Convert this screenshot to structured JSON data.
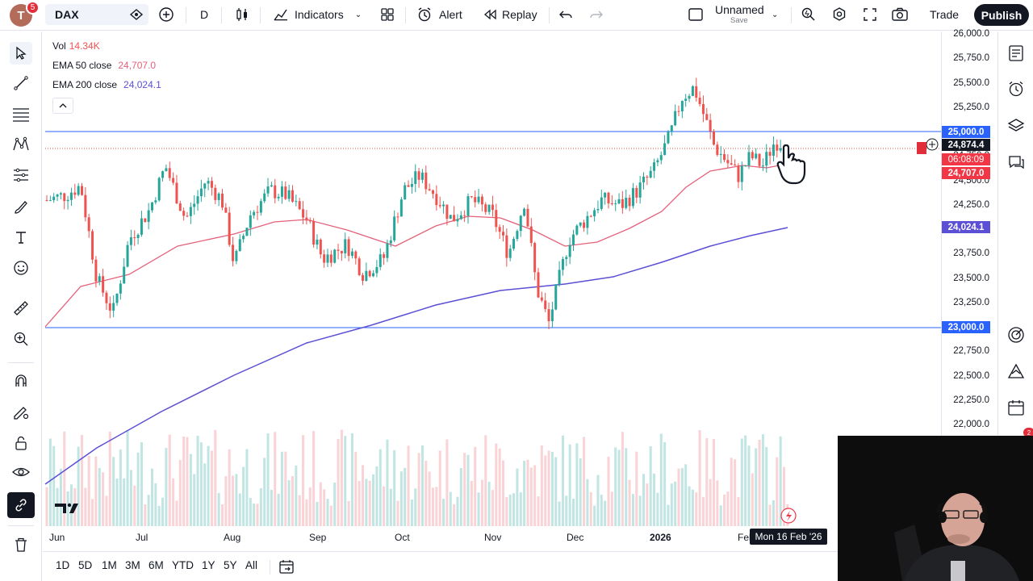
{
  "topbar": {
    "avatar_letter": "T",
    "notification_count": "5",
    "symbol": "DAX",
    "interval": "D",
    "indicators_label": "Indicators",
    "alert_label": "Alert",
    "replay_label": "Replay",
    "layout_name": "Unnamed",
    "layout_status": "Save",
    "trade_label": "Trade",
    "publish_label": "Publish"
  },
  "legend": {
    "vol_label": "Vol",
    "vol_value": "14.34K",
    "ema50_label": "EMA 50 close",
    "ema50_value": "24,707.0",
    "ema200_label": "EMA 200 close",
    "ema200_value": "24,024.1"
  },
  "price_axis": {
    "ticks": [
      "26,000.0",
      "25,750.0",
      "25,500.0",
      "25,250.0",
      "25,000.0",
      "24,750.0",
      "24,500.0",
      "24,250.0",
      "24,000.0",
      "23,750.0",
      "23,500.0",
      "23,250.0",
      "23,000.0",
      "22,750.0",
      "22,500.0",
      "22,250.0",
      "22,000.0"
    ],
    "hline_upper": "25,000.0",
    "last_price": "24,874.4",
    "countdown": "06:08:09",
    "ema50_tag": "24,707.0",
    "ema200_tag": "24,024.1",
    "hline_lower": "23,000.0"
  },
  "time_axis": {
    "ticks": [
      "Jun",
      "Jul",
      "Aug",
      "Sep",
      "Oct",
      "Nov",
      "Dec",
      "2026",
      "Feb"
    ],
    "crosshair_date": "Mon 16 Feb '26"
  },
  "ranges": [
    "1D",
    "5D",
    "1M",
    "3M",
    "6M",
    "YTD",
    "1Y",
    "5Y",
    "All"
  ],
  "colors": {
    "up": "#26a69a",
    "down": "#ef5350",
    "ema50": "#e5607a",
    "ema200": "#5b4fd6",
    "hline": "#2962ff"
  },
  "chart_data": {
    "type": "candlestick",
    "symbol": "DAX",
    "interval": "D",
    "ylim": [
      21900,
      26000
    ],
    "ema50_last": 24707.0,
    "ema200_last": 24024.1,
    "last_price": 24874.4,
    "horizontal_lines": [
      25000,
      23000
    ],
    "x_labels": [
      "Jun",
      "Jul",
      "Aug",
      "Sep",
      "Oct",
      "Nov",
      "Dec",
      "2026",
      "Feb"
    ]
  }
}
